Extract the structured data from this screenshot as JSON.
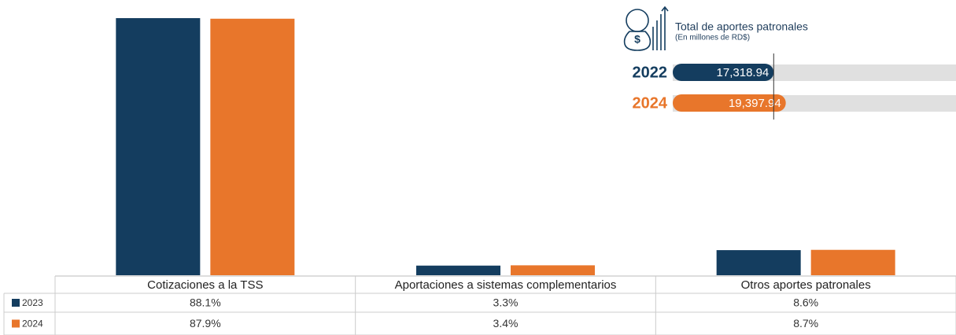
{
  "chart_data": [
    {
      "type": "bar",
      "categories": [
        "Cotizaciones a la TSS",
        "Aportaciones a sistemas complementarios",
        "Otros aportes patronales"
      ],
      "series": [
        {
          "name": "2023",
          "color": "#143d5f",
          "values": [
            88.1,
            3.3,
            8.6
          ],
          "value_labels": [
            "88.1%",
            "3.3%",
            "8.6%"
          ]
        },
        {
          "name": "2024",
          "color": "#e8762b",
          "values": [
            87.9,
            3.4,
            8.7
          ],
          "value_labels": [
            "87.9%",
            "3.4%",
            "8.7%"
          ]
        }
      ],
      "ylim": [
        0,
        90
      ]
    },
    {
      "type": "hbar",
      "title": "Total de aportes patronales",
      "subtitle": "(En millones de RD$)",
      "categories": [
        "2022",
        "2024"
      ],
      "values": [
        17318.94,
        19397.94
      ],
      "value_labels": [
        "17,318.94",
        "19,397.94"
      ],
      "colors": [
        "#143d5f",
        "#e8762b"
      ],
      "xlim": [
        0,
        48600
      ]
    }
  ]
}
